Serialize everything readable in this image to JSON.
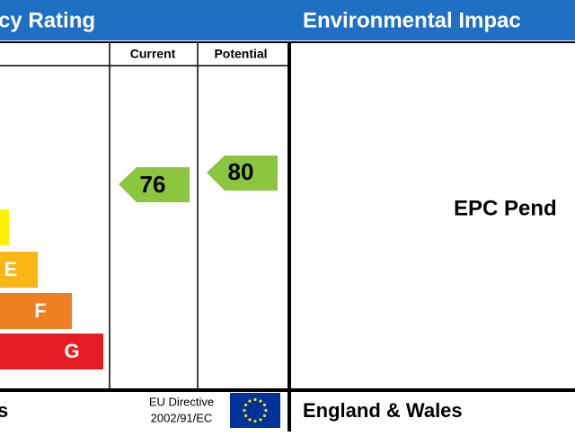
{
  "header": {
    "left_title": "cy Rating",
    "right_title": "Environmental Impac"
  },
  "left_panel": {
    "columns": [
      "Current",
      "Potential"
    ],
    "bands": [
      "E",
      "F",
      "G"
    ],
    "current": "76",
    "potential": "80",
    "footer": {
      "region": "s",
      "directive_line1": "EU Directive",
      "directive_line2": "2002/91/EC"
    }
  },
  "right_panel": {
    "status": "EPC Pend",
    "footer": "England & Wales"
  }
}
